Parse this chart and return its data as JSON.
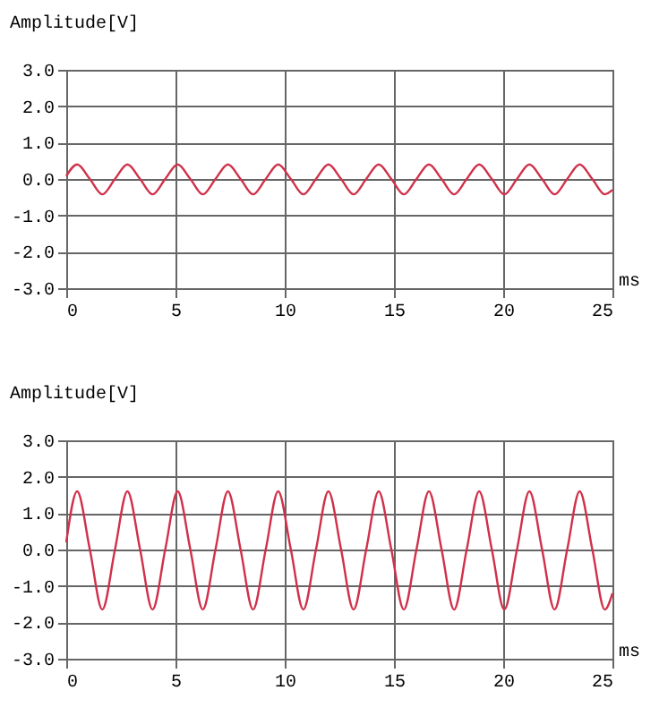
{
  "chart_data": [
    {
      "type": "line",
      "ylabel": "Amplitude[V]",
      "xlabel": "ms",
      "xlim": [
        0,
        25
      ],
      "ylim": [
        -3,
        3
      ],
      "xticks": [
        0,
        5,
        10,
        15,
        20,
        25
      ],
      "yticks": [
        {
          "value": -3,
          "label": "-3.0"
        },
        {
          "value": -2,
          "label": "-2.0"
        },
        {
          "value": -1,
          "label": "-1.0"
        },
        {
          "value": 0,
          "label": "0.0"
        },
        {
          "value": 1,
          "label": "1.0"
        },
        {
          "value": 2,
          "label": "2.0"
        },
        {
          "value": 3,
          "label": "3.0"
        }
      ],
      "grid": true,
      "line_style": "solid",
      "x": [
        0,
        0.5,
        1.08,
        1.65,
        2.23,
        2.8,
        3.38,
        3.95,
        4.53,
        5.1,
        5.68,
        6.25,
        6.83,
        7.4,
        7.98,
        8.55,
        9.13,
        9.7,
        10.28,
        10.85,
        11.43,
        12.0,
        12.58,
        13.15,
        13.73,
        14.3,
        14.88,
        15.45,
        16.03,
        16.6,
        17.18,
        17.75,
        18.33,
        18.9,
        19.48,
        20.05,
        20.63,
        21.2,
        21.78,
        22.35,
        22.93,
        23.5,
        24.08,
        24.65,
        25
      ],
      "series": [
        {
          "color": "#d0304a",
          "values": [
            0.08,
            0.4,
            0,
            -0.42,
            0,
            0.4,
            0,
            -0.42,
            0,
            0.4,
            0,
            -0.42,
            0,
            0.4,
            0,
            -0.42,
            0,
            0.4,
            0,
            -0.42,
            0,
            0.4,
            0,
            -0.42,
            0,
            0.4,
            0,
            -0.42,
            0,
            0.4,
            0,
            -0.42,
            0,
            0.4,
            0,
            -0.42,
            0,
            0.4,
            0,
            -0.42,
            0,
            0.4,
            0,
            -0.42,
            -0.3
          ]
        }
      ]
    },
    {
      "type": "line",
      "ylabel": "Amplitude[V]",
      "xlabel": "ms",
      "xlim": [
        0,
        25
      ],
      "ylim": [
        -3,
        3
      ],
      "xticks": [
        0,
        5,
        10,
        15,
        20,
        25
      ],
      "yticks": [
        {
          "value": -3,
          "label": "-3.0"
        },
        {
          "value": -2,
          "label": "-2.0"
        },
        {
          "value": -1,
          "label": "-1.0"
        },
        {
          "value": 0,
          "label": "0.0"
        },
        {
          "value": 1,
          "label": "1.0"
        },
        {
          "value": 2,
          "label": "2.0"
        },
        {
          "value": 3,
          "label": "3.0"
        }
      ],
      "grid": true,
      "line_style": "solid",
      "x": [
        0,
        0.5,
        1.08,
        1.65,
        2.23,
        2.8,
        3.38,
        3.95,
        4.53,
        5.1,
        5.68,
        6.25,
        6.83,
        7.4,
        7.98,
        8.55,
        9.13,
        9.7,
        10.28,
        10.85,
        11.43,
        12.0,
        12.58,
        13.15,
        13.73,
        14.3,
        14.88,
        15.45,
        16.03,
        16.6,
        17.18,
        17.75,
        18.33,
        18.9,
        19.48,
        20.05,
        20.63,
        21.2,
        21.78,
        22.35,
        22.93,
        23.5,
        24.08,
        24.65,
        25
      ],
      "series": [
        {
          "color": "#d0304a",
          "values": [
            0.2,
            1.6,
            0,
            -1.65,
            0,
            1.6,
            0,
            -1.65,
            0,
            1.6,
            0,
            -1.65,
            0,
            1.6,
            0,
            -1.65,
            0,
            1.6,
            0,
            -1.65,
            0,
            1.6,
            0,
            -1.65,
            0,
            1.6,
            0,
            -1.65,
            0,
            1.6,
            0,
            -1.65,
            0,
            1.6,
            0,
            -1.65,
            0,
            1.6,
            0,
            -1.65,
            0,
            1.6,
            0,
            -1.65,
            -1.2
          ]
        }
      ]
    }
  ]
}
